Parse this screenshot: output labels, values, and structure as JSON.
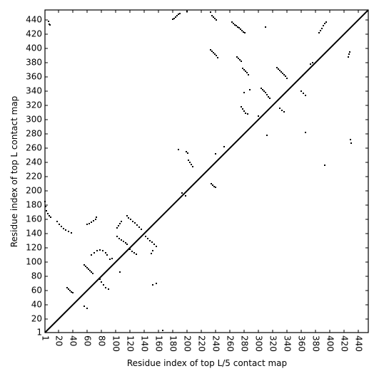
{
  "chart_data": {
    "type": "scatter",
    "xlabel": "Residue index of top L/5 contact map",
    "ylabel": "Residue index of top L contact map",
    "xlim": [
      1,
      454
    ],
    "ylim": [
      1,
      454
    ],
    "xticks": [
      1,
      20,
      40,
      60,
      80,
      100,
      120,
      140,
      160,
      180,
      200,
      220,
      240,
      260,
      280,
      300,
      320,
      340,
      360,
      380,
      400,
      420,
      440
    ],
    "yticks": [
      1,
      20,
      40,
      60,
      80,
      100,
      120,
      140,
      160,
      180,
      200,
      220,
      240,
      260,
      280,
      300,
      320,
      340,
      360,
      380,
      400,
      420,
      440
    ],
    "color": "#000000",
    "diagonal": {
      "x": [
        1,
        454
      ],
      "y": [
        1,
        454
      ]
    },
    "x": [
      6,
      7,
      8,
      180,
      182,
      184,
      186,
      188,
      190,
      200,
      233,
      235,
      237,
      239,
      241,
      263,
      265,
      267,
      269,
      271,
      273,
      275,
      277,
      279,
      281,
      233,
      235,
      237,
      239,
      241,
      243,
      310,
      270,
      272,
      274,
      276,
      278,
      280,
      282,
      284,
      286,
      385,
      387,
      389,
      391,
      393,
      395,
      373,
      376,
      426,
      427,
      428,
      362,
      1,
      2,
      3,
      5,
      7,
      9,
      18,
      21,
      24,
      27,
      30,
      34,
      38,
      32,
      34,
      36,
      38,
      40,
      56,
      58,
      60,
      62,
      64,
      66,
      68,
      56,
      60,
      60,
      63,
      66,
      69,
      72,
      73,
      66,
      70,
      74,
      78,
      82,
      86,
      88,
      78,
      80,
      83,
      86,
      90,
      92,
      95,
      102,
      104,
      106,
      108,
      102,
      105,
      108,
      111,
      114,
      116,
      116,
      118,
      121,
      124,
      127,
      130,
      133,
      136,
      120,
      123,
      126,
      129,
      106,
      142,
      145,
      148,
      151,
      154,
      157,
      150,
      152,
      152,
      157,
      166,
      188,
      199,
      201,
      202,
      204,
      206,
      208,
      234,
      236,
      238,
      240,
      240,
      252,
      276,
      278,
      280,
      282,
      285,
      280,
      288,
      304,
      306,
      308,
      310,
      312,
      314,
      316,
      326,
      328,
      330,
      332,
      334,
      336,
      338,
      340,
      330,
      333,
      336,
      312,
      360,
      363,
      366,
      366,
      393,
      429,
      430,
      300,
      193,
      198
    ],
    "y": [
      438,
      434,
      433,
      441,
      442,
      444,
      446,
      448,
      449,
      452,
      451,
      446,
      444,
      442,
      440,
      437,
      435,
      433,
      432,
      430,
      429,
      427,
      425,
      423,
      422,
      398,
      396,
      394,
      392,
      390,
      387,
      430,
      388,
      386,
      384,
      382,
      372,
      370,
      368,
      366,
      363,
      422,
      425,
      428,
      432,
      435,
      437,
      378,
      380,
      388,
      392,
      395,
      362,
      185,
      178,
      172,
      168,
      165,
      163,
      157,
      153,
      150,
      147,
      145,
      143,
      141,
      64,
      62,
      60,
      58,
      57,
      96,
      94,
      92,
      90,
      88,
      86,
      84,
      38,
      35,
      153,
      154,
      156,
      158,
      160,
      163,
      110,
      113,
      116,
      117,
      116,
      113,
      110,
      76,
      72,
      68,
      64,
      62,
      104,
      105,
      148,
      151,
      154,
      157,
      136,
      133,
      131,
      129,
      127,
      125,
      165,
      162,
      160,
      157,
      155,
      152,
      149,
      146,
      118,
      115,
      113,
      111,
      86,
      136,
      133,
      130,
      128,
      125,
      122,
      112,
      116,
      68,
      70,
      4,
      258,
      255,
      253,
      243,
      240,
      237,
      234,
      210,
      208,
      206,
      205,
      252,
      262,
      318,
      315,
      312,
      309,
      308,
      338,
      342,
      344,
      342,
      340,
      338,
      335,
      332,
      330,
      373,
      371,
      369,
      367,
      365,
      363,
      361,
      358,
      316,
      313,
      311,
      278,
      340,
      337,
      334,
      282,
      236,
      272,
      267,
      305,
      197,
      193
    ]
  }
}
